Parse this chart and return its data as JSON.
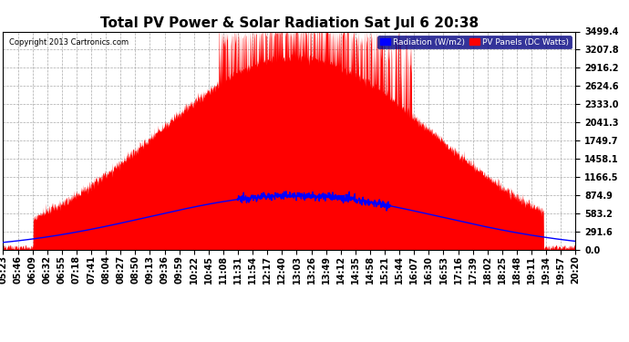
{
  "title": "Total PV Power & Solar Radiation Sat Jul 6 20:38",
  "copyright": "Copyright 2013 Cartronics.com",
  "background_color": "#ffffff",
  "plot_bg_color": "#ffffff",
  "yticks": [
    0.0,
    291.6,
    583.2,
    874.9,
    1166.5,
    1458.1,
    1749.7,
    2041.3,
    2333.0,
    2624.6,
    2916.2,
    3207.8,
    3499.4
  ],
  "ymax": 3499.4,
  "legend_labels": [
    "Radiation (W/m2)",
    "PV Panels (DC Watts)"
  ],
  "legend_colors": [
    "#0000ff",
    "#ff0000"
  ],
  "pv_color": "#ff0000",
  "rad_color": "#0000ff",
  "grid_color": "#aaaaaa",
  "title_fontsize": 11,
  "label_fontsize": 7,
  "xtick_labels": [
    "05:23",
    "05:46",
    "06:09",
    "06:32",
    "06:55",
    "07:18",
    "07:41",
    "08:04",
    "08:27",
    "08:50",
    "09:13",
    "09:36",
    "09:59",
    "10:22",
    "10:45",
    "11:08",
    "11:31",
    "11:54",
    "12:17",
    "12:40",
    "13:03",
    "13:26",
    "13:49",
    "14:12",
    "14:35",
    "14:58",
    "15:21",
    "15:44",
    "16:07",
    "16:30",
    "16:53",
    "17:16",
    "17:39",
    "18:02",
    "18:25",
    "18:48",
    "19:11",
    "19:34",
    "19:57",
    "20:20"
  ]
}
